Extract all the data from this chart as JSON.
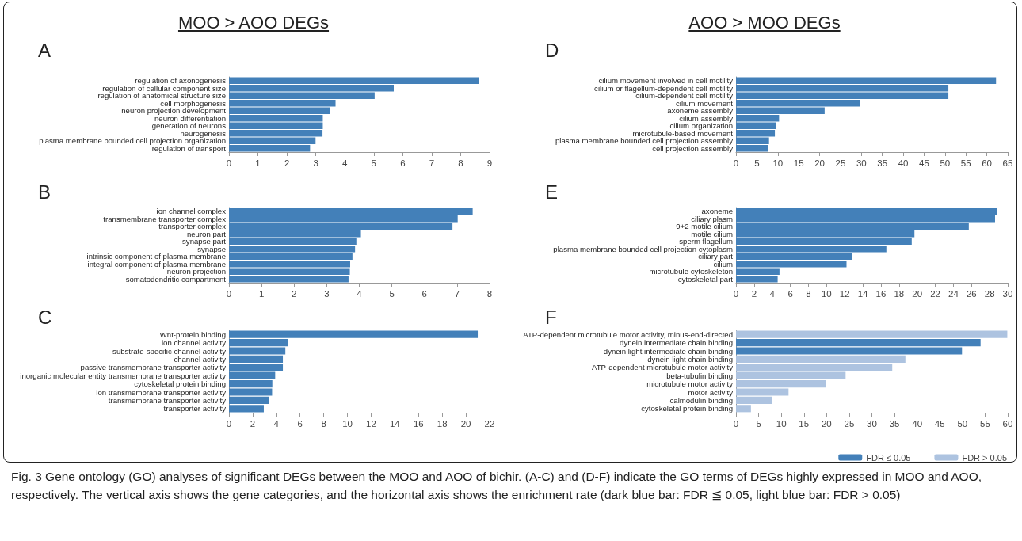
{
  "chart_data": [
    {
      "type": "bar",
      "orientation": "horizontal",
      "title": "A",
      "annotations": [
        "MOO > AOO DEGs"
      ],
      "categories": [
        "regulation of axonogenesis",
        "regulation of cellular component size",
        "regulation of anatomical structure size",
        "cell morphogenesis",
        "neuron projection development",
        "neuron differentiation",
        "generation of neurons",
        "neurogenesis",
        "plasma membrane bounded cell projection organization",
        "regulation of transport"
      ],
      "values": [
        8.64,
        5.69,
        5.03,
        3.68,
        3.49,
        3.24,
        3.24,
        3.23,
        2.99,
        2.8
      ],
      "color": "#4380b9",
      "xlim": [
        0,
        9
      ],
      "xticks": [
        0,
        1,
        2,
        3,
        4,
        5,
        6,
        7,
        8,
        9
      ]
    },
    {
      "type": "bar",
      "orientation": "horizontal",
      "title": "B",
      "categories": [
        "ion channel complex",
        "transmembrane transporter complex",
        "transporter complex",
        "neuron part",
        "synapse part",
        "synapse",
        "intrinsic component of plasma membrane",
        "integral component of plasma membrane",
        "neuron projection",
        "somatodendritic compartment"
      ],
      "values": [
        7.48,
        7.02,
        6.86,
        4.05,
        3.91,
        3.87,
        3.79,
        3.72,
        3.71,
        3.67
      ],
      "color": "#4380b9",
      "xlim": [
        0,
        8
      ],
      "xticks": [
        0,
        1,
        2,
        3,
        4,
        5,
        6,
        7,
        8
      ]
    },
    {
      "type": "bar",
      "orientation": "horizontal",
      "title": "C",
      "categories": [
        "Wnt-protein binding",
        "ion channel activity",
        "substrate-specific channel activity",
        "channel activity",
        "passive transmembrane transporter activity",
        "inorganic molecular entity transmembrane transporter activity",
        "cytoskeletal protein binding",
        "ion transmembrane transporter activity",
        "transmembrane transporter activity",
        "transporter activity"
      ],
      "values": [
        21.0,
        4.95,
        4.76,
        4.55,
        4.55,
        3.9,
        3.66,
        3.64,
        3.4,
        2.94
      ],
      "color": "#4380b9",
      "xlim": [
        0,
        22
      ],
      "xticks": [
        0,
        2,
        4,
        6,
        8,
        10,
        12,
        14,
        16,
        18,
        20,
        22
      ]
    },
    {
      "type": "bar",
      "orientation": "horizontal",
      "title": "D",
      "annotations": [
        "AOO > MOO DEGs"
      ],
      "categories": [
        "cilium movement involved in cell motility",
        "cilium or flagellum-dependent cell motility",
        "cilium-dependent cell motility",
        "cilium movement",
        "axoneme assembly",
        "cilium assembly",
        "cilium organization",
        "microtubule-based movement",
        "plasma membrane bounded cell projection assembly",
        "cell projection assembly"
      ],
      "values": [
        62.2,
        50.8,
        50.8,
        29.7,
        21.2,
        10.3,
        9.6,
        9.3,
        7.9,
        7.7
      ],
      "color": "#4380b9",
      "xlim": [
        0,
        65
      ],
      "xticks": [
        0,
        5,
        10,
        15,
        20,
        25,
        30,
        35,
        40,
        45,
        50,
        55,
        60,
        65
      ]
    },
    {
      "type": "bar",
      "orientation": "horizontal",
      "title": "E",
      "categories": [
        "axoneme",
        "ciliary plasm",
        "9+2 motile cilium",
        "motile cilium",
        "sperm flagellum",
        "plasma membrane bounded cell projection cytoplasm",
        "ciliary part",
        "cilium",
        "microtubule cytoskeleton",
        "cytoskeletal part"
      ],
      "values": [
        28.8,
        28.6,
        25.7,
        19.7,
        19.4,
        16.6,
        12.8,
        12.2,
        4.8,
        4.6
      ],
      "color": "#4380b9",
      "xlim": [
        0,
        30
      ],
      "xticks": [
        0,
        2,
        4,
        6,
        8,
        10,
        12,
        14,
        16,
        18,
        20,
        22,
        24,
        26,
        28,
        30
      ]
    },
    {
      "type": "bar",
      "orientation": "horizontal",
      "stacked": true,
      "legend": "bottom right",
      "title": "F",
      "annotations": [
        "Fig. 3 Gene ontology (GO) analyses of significant DEGs between the MOO and AOO of bichir. (A-C) and (D-F) indicate the GO terms of DEGs highly expressed in MOO and AOO, respectively. The vertical axis shows the gene categories, and the horizontal axis shows the enrichment rate (dark blue bar: FDR ≦ 0.05, light blue bar: FDR > 0.05)"
      ],
      "categories": [
        "ATP-dependent microtubule motor activity, minus-end-directed",
        "dynein intermediate chain binding",
        "dynein light intermediate chain binding",
        "dynein light chain binding",
        "ATP-dependent microtubule motor activity",
        "beta-tubulin binding",
        "microtubule motor activity",
        "motor activity",
        "calmodulin binding",
        "cytoskeletal protein binding"
      ],
      "series": [
        {
          "name": "FDR ≤ 0.05",
          "color": "#4380b9",
          "values": [
            null,
            54.0,
            49.9,
            null,
            null,
            null,
            null,
            null,
            null,
            null
          ]
        },
        {
          "name": "FDR > 0.05",
          "color": "#adc3e0",
          "values": [
            59.9,
            null,
            null,
            37.4,
            34.5,
            24.2,
            19.8,
            11.6,
            7.9,
            3.3
          ]
        }
      ],
      "xlim": [
        0,
        60
      ],
      "xticks": [
        0,
        5,
        10,
        15,
        20,
        25,
        30,
        35,
        40,
        45,
        50,
        55,
        60
      ]
    }
  ]
}
